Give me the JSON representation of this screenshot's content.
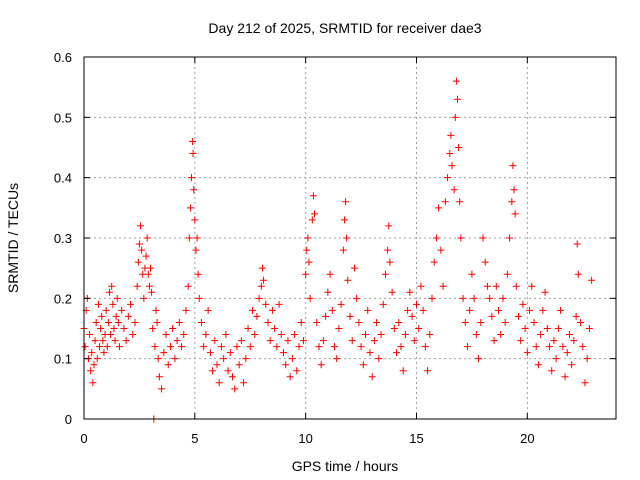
{
  "chart_data": {
    "type": "scatter",
    "title": "Day 212 of 2025, SRMTID for receiver dae3",
    "xlabel": "GPS time / hours",
    "ylabel": "SRMTID / TECUs",
    "xlim": [
      0,
      24
    ],
    "ylim": [
      0,
      0.6
    ],
    "xticks": [
      0,
      5,
      10,
      15,
      20
    ],
    "xtick_labels": [
      "0",
      "5",
      "10",
      "15",
      "20"
    ],
    "yticks": [
      0,
      0.1,
      0.2,
      0.3,
      0.4,
      0.5,
      0.6
    ],
    "ytick_labels": [
      "0",
      "0.1",
      "0.2",
      "0.3",
      "0.4",
      "0.5",
      "0.6"
    ],
    "grid": true,
    "marker": "+",
    "color": "#ff0000",
    "series": [
      {
        "name": "SRMTID",
        "points": [
          [
            0.0,
            0.15
          ],
          [
            0.05,
            0.12
          ],
          [
            0.1,
            0.18
          ],
          [
            0.15,
            0.2
          ],
          [
            0.2,
            0.1
          ],
          [
            0.25,
            0.14
          ],
          [
            0.3,
            0.08
          ],
          [
            0.35,
            0.11
          ],
          [
            0.4,
            0.06
          ],
          [
            0.45,
            0.09
          ],
          [
            0.5,
            0.13
          ],
          [
            0.55,
            0.16
          ],
          [
            0.6,
            0.1
          ],
          [
            0.65,
            0.19
          ],
          [
            0.7,
            0.12
          ],
          [
            0.75,
            0.15
          ],
          [
            0.8,
            0.17
          ],
          [
            0.85,
            0.13
          ],
          [
            0.9,
            0.11
          ],
          [
            0.95,
            0.14
          ],
          [
            1.0,
            0.18
          ],
          [
            1.05,
            0.12
          ],
          [
            1.1,
            0.16
          ],
          [
            1.15,
            0.21
          ],
          [
            1.2,
            0.14
          ],
          [
            1.25,
            0.22
          ],
          [
            1.3,
            0.19
          ],
          [
            1.35,
            0.15
          ],
          [
            1.4,
            0.13
          ],
          [
            1.45,
            0.17
          ],
          [
            1.5,
            0.2
          ],
          [
            1.55,
            0.16
          ],
          [
            1.6,
            0.12
          ],
          [
            1.7,
            0.18
          ],
          [
            1.8,
            0.15
          ],
          [
            1.9,
            0.13
          ],
          [
            2.0,
            0.17
          ],
          [
            2.1,
            0.19
          ],
          [
            2.2,
            0.14
          ],
          [
            2.3,
            0.16
          ],
          [
            2.4,
            0.22
          ],
          [
            2.45,
            0.26
          ],
          [
            2.5,
            0.29
          ],
          [
            2.55,
            0.32
          ],
          [
            2.6,
            0.28
          ],
          [
            2.65,
            0.24
          ],
          [
            2.7,
            0.2
          ],
          [
            2.75,
            0.25
          ],
          [
            2.8,
            0.27
          ],
          [
            2.85,
            0.3
          ],
          [
            2.9,
            0.24
          ],
          [
            2.95,
            0.22
          ],
          [
            3.0,
            0.25
          ],
          [
            3.05,
            0.21
          ],
          [
            3.1,
            0.15
          ],
          [
            3.15,
            0.0
          ],
          [
            3.2,
            0.12
          ],
          [
            3.25,
            0.18
          ],
          [
            3.3,
            0.16
          ],
          [
            3.35,
            0.1
          ],
          [
            3.4,
            0.07
          ],
          [
            3.5,
            0.05
          ],
          [
            3.6,
            0.11
          ],
          [
            3.7,
            0.14
          ],
          [
            3.8,
            0.09
          ],
          [
            3.9,
            0.12
          ],
          [
            4.0,
            0.15
          ],
          [
            4.1,
            0.1
          ],
          [
            4.2,
            0.13
          ],
          [
            4.3,
            0.16
          ],
          [
            4.4,
            0.12
          ],
          [
            4.5,
            0.14
          ],
          [
            4.6,
            0.18
          ],
          [
            4.7,
            0.22
          ],
          [
            4.75,
            0.3
          ],
          [
            4.8,
            0.35
          ],
          [
            4.85,
            0.4
          ],
          [
            4.9,
            0.46
          ],
          [
            4.92,
            0.44
          ],
          [
            4.95,
            0.38
          ],
          [
            5.0,
            0.33
          ],
          [
            5.05,
            0.28
          ],
          [
            5.1,
            0.3
          ],
          [
            5.15,
            0.24
          ],
          [
            5.2,
            0.2
          ],
          [
            5.3,
            0.16
          ],
          [
            5.4,
            0.12
          ],
          [
            5.5,
            0.14
          ],
          [
            5.6,
            0.18
          ],
          [
            5.7,
            0.11
          ],
          [
            5.8,
            0.08
          ],
          [
            5.9,
            0.13
          ],
          [
            6.0,
            0.09
          ],
          [
            6.1,
            0.06
          ],
          [
            6.2,
            0.12
          ],
          [
            6.3,
            0.1
          ],
          [
            6.4,
            0.14
          ],
          [
            6.5,
            0.08
          ],
          [
            6.6,
            0.11
          ],
          [
            6.7,
            0.07
          ],
          [
            6.8,
            0.05
          ],
          [
            6.9,
            0.12
          ],
          [
            7.0,
            0.09
          ],
          [
            7.1,
            0.13
          ],
          [
            7.2,
            0.06
          ],
          [
            7.3,
            0.1
          ],
          [
            7.4,
            0.15
          ],
          [
            7.5,
            0.12
          ],
          [
            7.6,
            0.18
          ],
          [
            7.7,
            0.14
          ],
          [
            7.8,
            0.17
          ],
          [
            7.9,
            0.2
          ],
          [
            8.0,
            0.22
          ],
          [
            8.05,
            0.25
          ],
          [
            8.1,
            0.23
          ],
          [
            8.2,
            0.19
          ],
          [
            8.3,
            0.16
          ],
          [
            8.4,
            0.13
          ],
          [
            8.5,
            0.18
          ],
          [
            8.6,
            0.15
          ],
          [
            8.7,
            0.12
          ],
          [
            8.8,
            0.19
          ],
          [
            8.9,
            0.14
          ],
          [
            9.0,
            0.11
          ],
          [
            9.1,
            0.09
          ],
          [
            9.2,
            0.13
          ],
          [
            9.3,
            0.07
          ],
          [
            9.4,
            0.1
          ],
          [
            9.5,
            0.14
          ],
          [
            9.6,
            0.08
          ],
          [
            9.7,
            0.12
          ],
          [
            9.8,
            0.16
          ],
          [
            9.9,
            0.13
          ],
          [
            10.0,
            0.24
          ],
          [
            10.05,
            0.28
          ],
          [
            10.1,
            0.3
          ],
          [
            10.15,
            0.26
          ],
          [
            10.2,
            0.2
          ],
          [
            10.3,
            0.33
          ],
          [
            10.35,
            0.37
          ],
          [
            10.4,
            0.34
          ],
          [
            10.5,
            0.16
          ],
          [
            10.6,
            0.12
          ],
          [
            10.7,
            0.09
          ],
          [
            10.8,
            0.13
          ],
          [
            10.9,
            0.17
          ],
          [
            11.0,
            0.21
          ],
          [
            11.1,
            0.24
          ],
          [
            11.2,
            0.18
          ],
          [
            11.3,
            0.12
          ],
          [
            11.4,
            0.1
          ],
          [
            11.5,
            0.15
          ],
          [
            11.6,
            0.19
          ],
          [
            11.7,
            0.28
          ],
          [
            11.75,
            0.33
          ],
          [
            11.8,
            0.36
          ],
          [
            11.85,
            0.3
          ],
          [
            11.9,
            0.23
          ],
          [
            12.0,
            0.17
          ],
          [
            12.1,
            0.13
          ],
          [
            12.2,
            0.25
          ],
          [
            12.3,
            0.2
          ],
          [
            12.4,
            0.16
          ],
          [
            12.5,
            0.12
          ],
          [
            12.6,
            0.09
          ],
          [
            12.7,
            0.14
          ],
          [
            12.8,
            0.18
          ],
          [
            12.9,
            0.11
          ],
          [
            13.0,
            0.07
          ],
          [
            13.1,
            0.13
          ],
          [
            13.2,
            0.16
          ],
          [
            13.3,
            0.1
          ],
          [
            13.4,
            0.14
          ],
          [
            13.5,
            0.19
          ],
          [
            13.6,
            0.24
          ],
          [
            13.7,
            0.28
          ],
          [
            13.75,
            0.32
          ],
          [
            13.8,
            0.26
          ],
          [
            13.9,
            0.21
          ],
          [
            14.0,
            0.15
          ],
          [
            14.1,
            0.11
          ],
          [
            14.2,
            0.16
          ],
          [
            14.3,
            0.12
          ],
          [
            14.4,
            0.08
          ],
          [
            14.5,
            0.14
          ],
          [
            14.6,
            0.18
          ],
          [
            14.7,
            0.21
          ],
          [
            14.8,
            0.17
          ],
          [
            14.9,
            0.13
          ],
          [
            15.0,
            0.19
          ],
          [
            15.1,
            0.15
          ],
          [
            15.2,
            0.22
          ],
          [
            15.3,
            0.18
          ],
          [
            15.4,
            0.12
          ],
          [
            15.5,
            0.08
          ],
          [
            15.6,
            0.14
          ],
          [
            15.7,
            0.2
          ],
          [
            15.8,
            0.26
          ],
          [
            15.9,
            0.3
          ],
          [
            16.0,
            0.35
          ],
          [
            16.1,
            0.28
          ],
          [
            16.2,
            0.22
          ],
          [
            16.3,
            0.36
          ],
          [
            16.4,
            0.4
          ],
          [
            16.5,
            0.44
          ],
          [
            16.55,
            0.47
          ],
          [
            16.6,
            0.42
          ],
          [
            16.7,
            0.38
          ],
          [
            16.75,
            0.5
          ],
          [
            16.8,
            0.56
          ],
          [
            16.85,
            0.53
          ],
          [
            16.9,
            0.45
          ],
          [
            16.95,
            0.36
          ],
          [
            17.0,
            0.3
          ],
          [
            17.1,
            0.2
          ],
          [
            17.2,
            0.16
          ],
          [
            17.3,
            0.12
          ],
          [
            17.4,
            0.18
          ],
          [
            17.5,
            0.24
          ],
          [
            17.6,
            0.2
          ],
          [
            17.7,
            0.14
          ],
          [
            17.8,
            0.1
          ],
          [
            17.9,
            0.16
          ],
          [
            18.0,
            0.3
          ],
          [
            18.1,
            0.26
          ],
          [
            18.2,
            0.22
          ],
          [
            18.3,
            0.2
          ],
          [
            18.4,
            0.17
          ],
          [
            18.5,
            0.13
          ],
          [
            18.6,
            0.22
          ],
          [
            18.7,
            0.18
          ],
          [
            18.8,
            0.14
          ],
          [
            18.9,
            0.2
          ],
          [
            19.0,
            0.16
          ],
          [
            19.1,
            0.24
          ],
          [
            19.2,
            0.3
          ],
          [
            19.3,
            0.36
          ],
          [
            19.35,
            0.42
          ],
          [
            19.4,
            0.38
          ],
          [
            19.45,
            0.34
          ],
          [
            19.5,
            0.22
          ],
          [
            19.6,
            0.17
          ],
          [
            19.7,
            0.13
          ],
          [
            19.8,
            0.19
          ],
          [
            19.9,
            0.15
          ],
          [
            20.0,
            0.11
          ],
          [
            20.1,
            0.18
          ],
          [
            20.2,
            0.22
          ],
          [
            20.3,
            0.16
          ],
          [
            20.4,
            0.12
          ],
          [
            20.5,
            0.09
          ],
          [
            20.6,
            0.14
          ],
          [
            20.7,
            0.18
          ],
          [
            20.8,
            0.21
          ],
          [
            20.9,
            0.15
          ],
          [
            21.0,
            0.12
          ],
          [
            21.1,
            0.08
          ],
          [
            21.2,
            0.13
          ],
          [
            21.3,
            0.1
          ],
          [
            21.4,
            0.15
          ],
          [
            21.5,
            0.18
          ],
          [
            21.6,
            0.12
          ],
          [
            21.7,
            0.07
          ],
          [
            21.8,
            0.11
          ],
          [
            21.9,
            0.14
          ],
          [
            22.0,
            0.09
          ],
          [
            22.1,
            0.13
          ],
          [
            22.2,
            0.17
          ],
          [
            22.25,
            0.29
          ],
          [
            22.3,
            0.24
          ],
          [
            22.4,
            0.16
          ],
          [
            22.5,
            0.12
          ],
          [
            22.6,
            0.06
          ],
          [
            22.7,
            0.1
          ],
          [
            22.8,
            0.15
          ],
          [
            22.9,
            0.23
          ]
        ]
      }
    ]
  }
}
